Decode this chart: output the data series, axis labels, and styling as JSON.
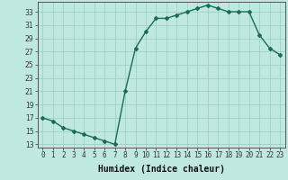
{
  "x": [
    0,
    1,
    2,
    3,
    4,
    5,
    6,
    7,
    8,
    9,
    10,
    11,
    12,
    13,
    14,
    15,
    16,
    17,
    18,
    19,
    20,
    21,
    22,
    23
  ],
  "y": [
    17,
    16.5,
    15.5,
    15,
    14.5,
    14,
    13.5,
    13,
    21,
    27.5,
    30,
    32,
    32,
    32.5,
    33,
    33.5,
    34,
    33.5,
    33,
    33,
    33,
    29.5,
    27.5,
    26.5
  ],
  "line_color": "#1a6b5a",
  "bg_color": "#bfe8e0",
  "grid_color": "#99ccc4",
  "xlabel": "Humidex (Indice chaleur)",
  "ylabel": "",
  "xlim": [
    -0.5,
    23.5
  ],
  "ylim": [
    12.5,
    34.5
  ],
  "yticks": [
    13,
    15,
    17,
    19,
    21,
    23,
    25,
    27,
    29,
    31,
    33
  ],
  "xtick_labels": [
    "0",
    "1",
    "2",
    "3",
    "4",
    "5",
    "6",
    "7",
    "8",
    "9",
    "10",
    "11",
    "12",
    "13",
    "14",
    "15",
    "16",
    "17",
    "18",
    "19",
    "20",
    "21",
    "22",
    "23"
  ],
  "marker": "D",
  "marker_size": 2.0,
  "linewidth": 1.0,
  "xlabel_fontsize": 7,
  "tick_fontsize": 5.5
}
